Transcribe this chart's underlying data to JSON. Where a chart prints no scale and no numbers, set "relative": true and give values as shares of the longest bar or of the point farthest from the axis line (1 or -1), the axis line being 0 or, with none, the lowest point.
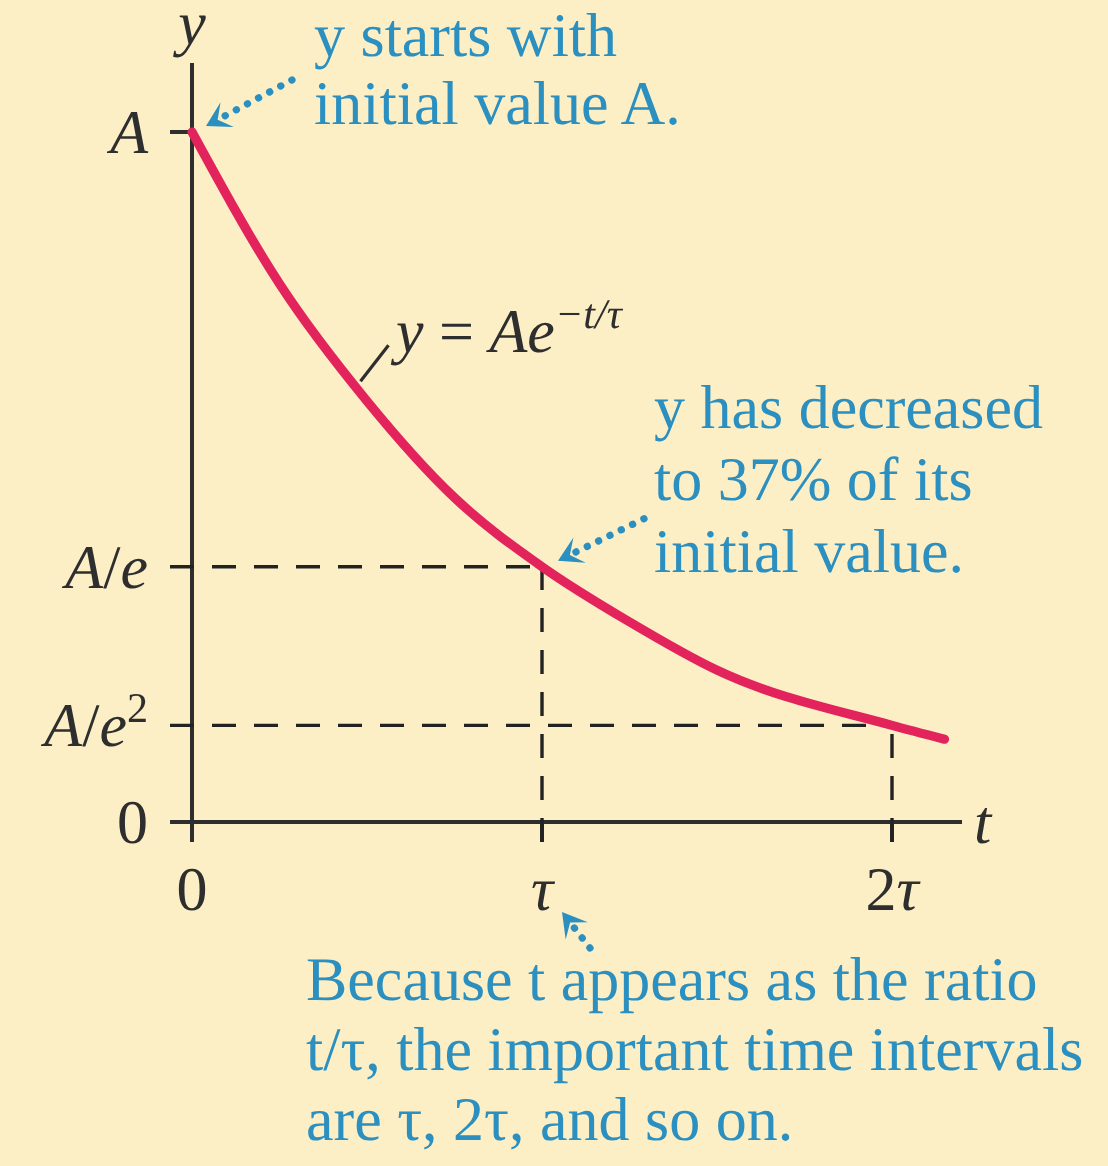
{
  "chart_data": {
    "type": "line",
    "xlabel": "t",
    "ylabel": "y",
    "relative": true,
    "x": [
      0,
      0.25,
      0.5,
      0.75,
      1,
      1.25,
      1.5,
      2,
      2.15
    ],
    "series": [
      {
        "color": "#e2235c",
        "values": [
          1,
          0.78,
          0.61,
          0.47,
          0.37,
          0.29,
          0.22,
          0.14,
          0.12
        ]
      }
    ],
    "xlim": [
      0,
      2.2
    ],
    "xticks": [
      0,
      {
        "value": 1,
        "label": "τ"
      },
      {
        "value": 2,
        "label": "2τ"
      }
    ],
    "ref_lines": [
      {
        "axis": "y",
        "value": 1,
        "label": "A",
        "color": "#2e2e2e",
        "line_style": "solid"
      },
      {
        "axis": "y",
        "value": 0.37,
        "label": "A/e",
        "color": "#222222",
        "line_style": "dashed"
      },
      {
        "axis": "y",
        "value": 0.14,
        "label": "A/e$^{2}$",
        "color": "#222222",
        "line_style": "dashed"
      },
      {
        "axis": "x",
        "value": 1,
        "color": "#222222",
        "line_style": "dashed"
      },
      {
        "axis": "x",
        "value": 2,
        "color": "#222222",
        "line_style": "dashed"
      }
    ],
    "annotations": [
      {
        "text": "y starts with initial value A.",
        "x": 0,
        "y": 1
      },
      {
        "text": "y = Ae$^{−t/τ}$",
        "x": 0.47,
        "y": 0.63
      },
      {
        "text": "y has decreased to 37% of its initial value.",
        "x": 1,
        "y": 0.37
      },
      "0",
      "Because t appears as the ratio t/τ, the important time intervals are τ, 2τ, and so on."
    ]
  }
}
